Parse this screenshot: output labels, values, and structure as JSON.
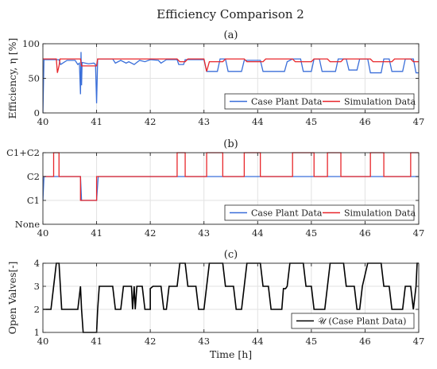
{
  "figure": {
    "title": "Efficiency Comparison 2"
  },
  "chart_data": [
    {
      "type": "line",
      "panel_label": "(a)",
      "xlabel": "",
      "ylabel": "Efficiency, η [%]",
      "xlim": [
        40,
        47
      ],
      "ylim": [
        0,
        100
      ],
      "xticks": [
        40,
        41,
        42,
        43,
        44,
        45,
        46,
        47
      ],
      "yticks": [
        0,
        50,
        100
      ],
      "ytick_labels": [
        "0",
        "50",
        "100"
      ],
      "grid": true,
      "legend_position": "bottom-right",
      "series": [
        {
          "name": "Case Plant Data",
          "color": "#3b6fd9",
          "points": [
            [
              40,
              0
            ],
            [
              40.02,
              77
            ],
            [
              40.3,
              77
            ],
            [
              40.33,
              70
            ],
            [
              40.45,
              76
            ],
            [
              40.6,
              76
            ],
            [
              40.65,
              70
            ],
            [
              40.68,
              72
            ],
            [
              40.7,
              27
            ],
            [
              40.71,
              88
            ],
            [
              40.72,
              40
            ],
            [
              40.73,
              73
            ],
            [
              40.85,
              71
            ],
            [
              40.95,
              72
            ],
            [
              40.98,
              70
            ],
            [
              41,
              14
            ],
            [
              41.02,
              78
            ],
            [
              41.3,
              78
            ],
            [
              41.35,
              72
            ],
            [
              41.45,
              76
            ],
            [
              41.55,
              72
            ],
            [
              41.6,
              74
            ],
            [
              41.7,
              70
            ],
            [
              41.8,
              76
            ],
            [
              41.9,
              74
            ],
            [
              42,
              77
            ],
            [
              42.15,
              76
            ],
            [
              42.2,
              72
            ],
            [
              42.3,
              77
            ],
            [
              42.5,
              77
            ],
            [
              42.53,
              70
            ],
            [
              42.62,
              70
            ],
            [
              42.65,
              77
            ],
            [
              43,
              77
            ],
            [
              43.05,
              60
            ],
            [
              43.25,
              60
            ],
            [
              43.3,
              78
            ],
            [
              43.4,
              78
            ],
            [
              43.45,
              60
            ],
            [
              43.7,
              60
            ],
            [
              43.75,
              76
            ],
            [
              44.05,
              76
            ],
            [
              44.1,
              60
            ],
            [
              44.5,
              60
            ],
            [
              44.55,
              74
            ],
            [
              44.65,
              78
            ],
            [
              44.8,
              78
            ],
            [
              44.85,
              60
            ],
            [
              45,
              60
            ],
            [
              45.05,
              78
            ],
            [
              45.15,
              78
            ],
            [
              45.2,
              60
            ],
            [
              45.45,
              60
            ],
            [
              45.5,
              78
            ],
            [
              45.65,
              78
            ],
            [
              45.7,
              62
            ],
            [
              45.85,
              62
            ],
            [
              45.9,
              78
            ],
            [
              46.05,
              78
            ],
            [
              46.1,
              58
            ],
            [
              46.3,
              58
            ],
            [
              46.35,
              78
            ],
            [
              46.45,
              78
            ],
            [
              46.5,
              60
            ],
            [
              46.7,
              60
            ],
            [
              46.75,
              78
            ],
            [
              46.9,
              78
            ],
            [
              46.95,
              58
            ],
            [
              47,
              58
            ]
          ]
        },
        {
          "name": "Simulation Data",
          "color": "#e8272b",
          "points": [
            [
              40,
              78
            ],
            [
              40.25,
              78
            ],
            [
              40.27,
              58
            ],
            [
              40.3,
              68
            ],
            [
              40.32,
              78
            ],
            [
              40.7,
              78
            ],
            [
              40.72,
              68
            ],
            [
              41,
              68
            ],
            [
              41.02,
              78
            ],
            [
              42.5,
              78
            ],
            [
              42.55,
              74
            ],
            [
              42.65,
              74
            ],
            [
              42.7,
              78
            ],
            [
              43,
              78
            ],
            [
              43.05,
              60
            ],
            [
              43.1,
              74
            ],
            [
              43.35,
              74
            ],
            [
              43.4,
              78
            ],
            [
              43.75,
              78
            ],
            [
              43.8,
              74
            ],
            [
              44.1,
              74
            ],
            [
              44.15,
              78
            ],
            [
              44.65,
              78
            ],
            [
              44.7,
              74
            ],
            [
              45,
              74
            ],
            [
              45.05,
              78
            ],
            [
              45.3,
              78
            ],
            [
              45.35,
              74
            ],
            [
              45.55,
              74
            ],
            [
              45.6,
              78
            ],
            [
              46.1,
              78
            ],
            [
              46.15,
              74
            ],
            [
              46.5,
              74
            ],
            [
              46.55,
              78
            ],
            [
              46.85,
              78
            ],
            [
              46.9,
              74
            ],
            [
              47,
              74
            ]
          ]
        }
      ]
    },
    {
      "type": "line",
      "panel_label": "(b)",
      "xlabel": "",
      "ylabel": "",
      "xlim": [
        40,
        47
      ],
      "ylim": [
        0,
        3
      ],
      "xticks": [
        40,
        41,
        42,
        43,
        44,
        45,
        46,
        47
      ],
      "yticks": [
        0,
        1,
        2,
        3
      ],
      "ytick_labels": [
        "None",
        "C1",
        "C2",
        "C1+C2"
      ],
      "grid": true,
      "legend_position": "bottom-right",
      "series": [
        {
          "name": "Case Plant Data",
          "color": "#3b6fd9",
          "points": [
            [
              40,
              1
            ],
            [
              40.02,
              2
            ],
            [
              40.7,
              2
            ],
            [
              40.72,
              1
            ],
            [
              41,
              1
            ],
            [
              41.03,
              2
            ],
            [
              47,
              2
            ]
          ]
        },
        {
          "name": "Simulation Data",
          "color": "#e8272b",
          "points": [
            [
              40,
              2
            ],
            [
              40.2,
              2
            ],
            [
              40.2,
              3
            ],
            [
              40.3,
              3
            ],
            [
              40.3,
              2
            ],
            [
              40.7,
              2
            ],
            [
              40.7,
              1
            ],
            [
              41,
              1
            ],
            [
              41,
              2
            ],
            [
              42.5,
              2
            ],
            [
              42.5,
              3
            ],
            [
              42.65,
              3
            ],
            [
              42.65,
              2
            ],
            [
              43.05,
              2
            ],
            [
              43.05,
              3
            ],
            [
              43.35,
              3
            ],
            [
              43.35,
              2
            ],
            [
              43.75,
              2
            ],
            [
              43.75,
              3
            ],
            [
              44.05,
              3
            ],
            [
              44.05,
              2
            ],
            [
              44.65,
              2
            ],
            [
              44.65,
              3
            ],
            [
              45.05,
              3
            ],
            [
              45.05,
              2
            ],
            [
              45.3,
              2
            ],
            [
              45.3,
              3
            ],
            [
              45.55,
              3
            ],
            [
              45.55,
              2
            ],
            [
              46.1,
              2
            ],
            [
              46.1,
              3
            ],
            [
              46.35,
              3
            ],
            [
              46.35,
              2
            ],
            [
              46.85,
              2
            ],
            [
              46.85,
              3
            ],
            [
              47,
              3
            ]
          ]
        }
      ]
    },
    {
      "type": "line",
      "panel_label": "(c)",
      "xlabel": "Time [h]",
      "ylabel": "Open Valves[-]",
      "xlim": [
        40,
        47
      ],
      "ylim": [
        1,
        4
      ],
      "xticks": [
        40,
        41,
        42,
        43,
        44,
        45,
        46,
        47
      ],
      "yticks": [
        1,
        2,
        3,
        4
      ],
      "ytick_labels": [
        "1",
        "2",
        "3",
        "4"
      ],
      "grid": true,
      "legend_position": "bottom-right",
      "series": [
        {
          "name": "𝒰 (Case Plant Data)",
          "color": "#000000",
          "points": [
            [
              40,
              2
            ],
            [
              40.15,
              2
            ],
            [
              40.2,
              3
            ],
            [
              40.25,
              4
            ],
            [
              40.3,
              4
            ],
            [
              40.35,
              2
            ],
            [
              40.65,
              2
            ],
            [
              40.7,
              3
            ],
            [
              40.72,
              2
            ],
            [
              40.75,
              1
            ],
            [
              41,
              1
            ],
            [
              41.02,
              2
            ],
            [
              41.05,
              3
            ],
            [
              41.3,
              3
            ],
            [
              41.35,
              2
            ],
            [
              41.45,
              2
            ],
            [
              41.5,
              3
            ],
            [
              41.65,
              3
            ],
            [
              41.67,
              2
            ],
            [
              41.7,
              3
            ],
            [
              41.72,
              2
            ],
            [
              41.75,
              3
            ],
            [
              41.85,
              3
            ],
            [
              41.9,
              2
            ],
            [
              42,
              2
            ],
            [
              42,
              2.9
            ],
            [
              42.05,
              3
            ],
            [
              42.2,
              3
            ],
            [
              42.25,
              2
            ],
            [
              42.3,
              2
            ],
            [
              42.35,
              3
            ],
            [
              42.5,
              3
            ],
            [
              42.55,
              4
            ],
            [
              42.65,
              4
            ],
            [
              42.7,
              3
            ],
            [
              42.85,
              3
            ],
            [
              42.9,
              2
            ],
            [
              43,
              2
            ],
            [
              43.05,
              3
            ],
            [
              43.1,
              4
            ],
            [
              43.35,
              4
            ],
            [
              43.4,
              3
            ],
            [
              43.55,
              3
            ],
            [
              43.6,
              2
            ],
            [
              43.7,
              2
            ],
            [
              43.75,
              3
            ],
            [
              43.8,
              4
            ],
            [
              44.05,
              4
            ],
            [
              44.1,
              3
            ],
            [
              44.2,
              3
            ],
            [
              44.25,
              2
            ],
            [
              44.45,
              2
            ],
            [
              44.48,
              2.9
            ],
            [
              44.52,
              2.9
            ],
            [
              44.55,
              3
            ],
            [
              44.6,
              4
            ],
            [
              44.85,
              4
            ],
            [
              44.9,
              3
            ],
            [
              45,
              3
            ],
            [
              45.05,
              2
            ],
            [
              45.25,
              2
            ],
            [
              45.3,
              3
            ],
            [
              45.35,
              4
            ],
            [
              45.6,
              4
            ],
            [
              45.65,
              3
            ],
            [
              45.8,
              3
            ],
            [
              45.85,
              2
            ],
            [
              45.9,
              2
            ],
            [
              45.95,
              3
            ],
            [
              46.05,
              4
            ],
            [
              46.3,
              4
            ],
            [
              46.35,
              3
            ],
            [
              46.45,
              3
            ],
            [
              46.5,
              2
            ],
            [
              46.7,
              2
            ],
            [
              46.75,
              3
            ],
            [
              46.85,
              3
            ],
            [
              46.9,
              2
            ],
            [
              46.95,
              3
            ],
            [
              46.97,
              4
            ],
            [
              47,
              4
            ]
          ]
        }
      ]
    }
  ]
}
